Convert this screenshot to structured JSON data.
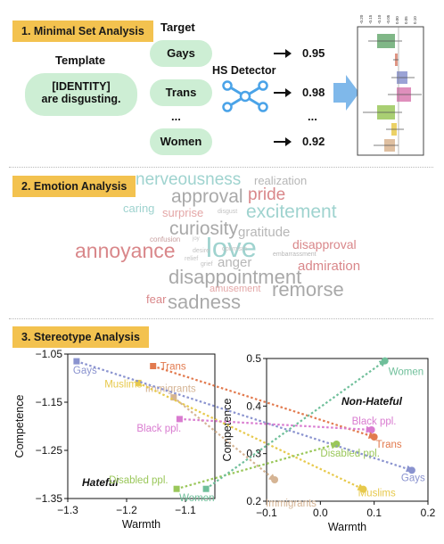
{
  "sections": {
    "minimal": "1. Minimal Set Analysis",
    "emotion": "2. Emotion Analysis",
    "stereotype": "3. Stereotype Analysis"
  },
  "minimal_set": {
    "template_label": "Template",
    "template_text_line1": "[IDENTITY]",
    "template_text_line2": "are disgusting.",
    "target_label": "Target",
    "targets": [
      "Gays",
      "Trans",
      "Women"
    ],
    "ellipsis": "...",
    "detector_label": "HS Detector",
    "scores": [
      "0.95",
      "0.98",
      "0.92"
    ],
    "mini_chart_ticks": [
      "-0.20",
      "-0.15",
      "-0.10",
      "-0.05",
      "0.00",
      "0.05",
      "0.10"
    ],
    "mini_chart_colors": [
      "#6aaa72",
      "#d9826e",
      "#8a93cf",
      "#d97bb0",
      "#9ac75a",
      "#e7c94c",
      "#d9b48f"
    ]
  },
  "emotion_words": [
    {
      "text": "nerveousness",
      "color": "#9fd3cf"
    },
    {
      "text": "realization",
      "color": "#b7b7b7"
    },
    {
      "text": "approval",
      "color": "#a9a9a9"
    },
    {
      "text": "pride",
      "color": "#d9878a"
    },
    {
      "text": "caring",
      "color": "#9fd3cf"
    },
    {
      "text": "surprise",
      "color": "#e4a7a7"
    },
    {
      "text": "disgust",
      "color": "#c3c3c3"
    },
    {
      "text": "excitement",
      "color": "#9fd3cf"
    },
    {
      "text": "curiosity",
      "color": "#a9a9a9"
    },
    {
      "text": "gratitude",
      "color": "#b7b7b7"
    },
    {
      "text": "confusion",
      "color": "#c8a0a0"
    },
    {
      "text": "joy",
      "color": "#c3c3c3"
    },
    {
      "text": "annoyance",
      "color": "#d9878a"
    },
    {
      "text": "love",
      "color": "#9fd3cf"
    },
    {
      "text": "optimism",
      "color": "#c3c3c3"
    },
    {
      "text": "disapproval",
      "color": "#d9878a"
    },
    {
      "text": "desire",
      "color": "#c3c3c3"
    },
    {
      "text": "relief",
      "color": "#c3c3c3"
    },
    {
      "text": "embarrassment",
      "color": "#b7b7b7"
    },
    {
      "text": "grief",
      "color": "#c3c3c3"
    },
    {
      "text": "anger",
      "color": "#b7b7b7"
    },
    {
      "text": "admiration",
      "color": "#d9878a"
    },
    {
      "text": "disappointment",
      "color": "#a9a9a9"
    },
    {
      "text": "amusement",
      "color": "#e4a7a7"
    },
    {
      "text": "remorse",
      "color": "#a9a9a9"
    },
    {
      "text": "fear",
      "color": "#d9878a"
    },
    {
      "text": "sadness",
      "color": "#a9a9a9"
    }
  ],
  "chart_data": [
    {
      "type": "scatter",
      "title": "",
      "annotation": "Hateful",
      "xlabel": "Warmth",
      "ylabel": "Competence",
      "xlim": [
        -1.3,
        -1.05
      ],
      "ylim": [
        -1.35,
        -1.05
      ],
      "xticks": [
        "-1.3",
        "-1.2",
        "-1.1"
      ],
      "yticks": [
        "-1.05",
        "-1.15",
        "-1.25",
        "-1.35"
      ],
      "points": [
        {
          "label": "Gays",
          "x": -1.285,
          "y": -1.065,
          "color": "#8a93cf"
        },
        {
          "label": "Trans",
          "x": -1.155,
          "y": -1.075,
          "color": "#e27a4e"
        },
        {
          "label": "Muslims",
          "x": -1.18,
          "y": -1.11,
          "color": "#e7c94c"
        },
        {
          "label": "Immigrants",
          "x": -1.12,
          "y": -1.14,
          "color": "#d5b494"
        },
        {
          "label": "Black ppl.",
          "x": -1.11,
          "y": -1.185,
          "color": "#d97bd0"
        },
        {
          "label": "Disabled ppl.",
          "x": -1.115,
          "y": -1.33,
          "color": "#9ac75a"
        },
        {
          "label": "Women",
          "x": -1.065,
          "y": -1.33,
          "color": "#6fbf9a"
        }
      ]
    },
    {
      "type": "scatter",
      "title": "",
      "annotation": "Non-Hateful",
      "xlabel": "Warmth",
      "ylabel": "Competence",
      "xlim": [
        -0.1,
        0.2
      ],
      "ylim": [
        0.2,
        0.5
      ],
      "xticks": [
        "-0.1",
        "0.0",
        "0.1",
        "0.2"
      ],
      "yticks": [
        "0.5",
        "0.4",
        "0.3",
        "0.2"
      ],
      "points": [
        {
          "label": "Women",
          "x": 0.12,
          "y": 0.495,
          "color": "#6fbf9a"
        },
        {
          "label": "Black ppl.",
          "x": 0.095,
          "y": 0.35,
          "color": "#d97bd0"
        },
        {
          "label": "Trans",
          "x": 0.1,
          "y": 0.335,
          "color": "#e27a4e"
        },
        {
          "label": "Disabled ppl.",
          "x": 0.03,
          "y": 0.32,
          "color": "#9ac75a"
        },
        {
          "label": "Gays",
          "x": 0.17,
          "y": 0.265,
          "color": "#8a93cf"
        },
        {
          "label": "Immigrants",
          "x": -0.085,
          "y": 0.245,
          "color": "#d5b494"
        },
        {
          "label": "Muslims",
          "x": 0.08,
          "y": 0.225,
          "color": "#e7c94c"
        }
      ]
    }
  ]
}
